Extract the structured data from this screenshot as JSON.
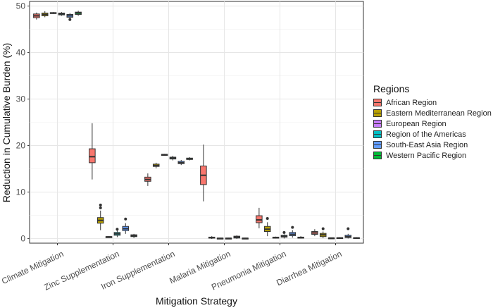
{
  "chart_data": {
    "type": "boxplot",
    "title": "",
    "xlabel": "Mitigation Strategy",
    "ylabel": "Reduction in Cumulative Burden (%)",
    "ylim": [
      -1,
      51
    ],
    "yticks": [
      0,
      10,
      20,
      30,
      40,
      50
    ],
    "ytick_labels": [
      "0",
      "10",
      "20",
      "30",
      "40",
      "50"
    ],
    "grid": true,
    "legend_position": "right",
    "categories": [
      "Climate Mitigation",
      "Zinc Supplementation",
      "Iron Supplementation",
      "Malaria Mitigation",
      "Pneumonia Mitigation",
      "Diarrhea Mitigation"
    ],
    "series": [
      {
        "name": "African Region",
        "color": "#F8766D",
        "boxes": [
          {
            "min": 47.1,
            "q1": 47.5,
            "median": 47.9,
            "q3": 48.3,
            "max": 48.6
          },
          {
            "min": 12.7,
            "q1": 16.3,
            "median": 17.6,
            "q3": 19.3,
            "max": 24.8,
            "outliers": []
          },
          {
            "min": 11.3,
            "q1": 12.3,
            "median": 12.7,
            "q3": 13.2,
            "max": 14.0
          },
          {
            "min": 8.0,
            "q1": 11.6,
            "median": 13.6,
            "q3": 15.6,
            "max": 20.2
          },
          {
            "min": 2.2,
            "q1": 3.4,
            "median": 4.0,
            "q3": 4.9,
            "max": 6.6
          },
          {
            "min": 0.5,
            "q1": 0.9,
            "median": 1.2,
            "q3": 1.5,
            "max": 2.0
          }
        ]
      },
      {
        "name": "Eastern Mediterranean Region",
        "color": "#B79F00",
        "boxes": [
          {
            "min": 47.6,
            "q1": 47.9,
            "median": 48.2,
            "q3": 48.5,
            "max": 48.9
          },
          {
            "min": 1.8,
            "q1": 3.3,
            "median": 3.9,
            "q3": 4.5,
            "max": 6.0,
            "outliers": [
              6.6,
              7.2
            ]
          },
          {
            "min": 15.1,
            "q1": 15.5,
            "median": 15.7,
            "q3": 16.0,
            "max": 16.3
          },
          {
            "min": -0.1,
            "q1": 0.1,
            "median": 0.2,
            "q3": 0.3,
            "max": 0.5
          },
          {
            "min": 0.5,
            "q1": 1.5,
            "median": 2.0,
            "q3": 2.6,
            "max": 3.5,
            "outliers": [
              4.3
            ]
          },
          {
            "min": 0.1,
            "q1": 0.4,
            "median": 0.8,
            "q3": 1.1,
            "max": 1.5,
            "outliers": [
              2.1
            ]
          }
        ]
      },
      {
        "name": "European Region",
        "color": "#C77CFF",
        "boxes": [
          {
            "min": 48.3,
            "q1": 48.4,
            "median": 48.5,
            "q3": 48.6,
            "max": 48.7
          },
          {
            "min": 0.2,
            "q1": 0.3,
            "median": 0.35,
            "q3": 0.4,
            "max": 0.5
          },
          {
            "min": 17.9,
            "q1": 18.0,
            "median": 18.05,
            "q3": 18.1,
            "max": 18.2
          },
          {
            "min": -0.1,
            "q1": 0.0,
            "median": 0.05,
            "q3": 0.1,
            "max": 0.2
          },
          {
            "min": 0.0,
            "q1": 0.1,
            "median": 0.2,
            "q3": 0.3,
            "max": 0.4
          },
          {
            "min": 0.0,
            "q1": 0.05,
            "median": 0.1,
            "q3": 0.15,
            "max": 0.2
          }
        ]
      },
      {
        "name": "Region of the Americas",
        "color": "#00BFC4",
        "boxes": [
          {
            "min": 47.9,
            "q1": 48.1,
            "median": 48.3,
            "q3": 48.5,
            "max": 48.7
          },
          {
            "min": 0.3,
            "q1": 0.7,
            "median": 1.0,
            "q3": 1.3,
            "max": 1.7,
            "outliers": [
              2.0
            ]
          },
          {
            "min": 16.8,
            "q1": 17.1,
            "median": 17.3,
            "q3": 17.5,
            "max": 17.8
          },
          {
            "min": -0.1,
            "q1": 0.0,
            "median": 0.05,
            "q3": 0.1,
            "max": 0.2
          },
          {
            "min": 0.0,
            "q1": 0.3,
            "median": 0.5,
            "q3": 0.7,
            "max": 0.9,
            "outliers": [
              1.3
            ]
          },
          {
            "min": 0.0,
            "q1": 0.05,
            "median": 0.1,
            "q3": 0.2,
            "max": 0.3
          }
        ]
      },
      {
        "name": "South-East Asia Region",
        "color": "#619CFF",
        "boxes": [
          {
            "min": 47.2,
            "q1": 47.6,
            "median": 47.9,
            "q3": 48.2,
            "max": 48.5,
            "outliers": [
              47.1
            ]
          },
          {
            "min": 1.0,
            "q1": 1.7,
            "median": 2.1,
            "q3": 2.6,
            "max": 3.3,
            "outliers": [
              4.2
            ]
          },
          {
            "min": 15.8,
            "q1": 16.1,
            "median": 16.3,
            "q3": 16.6,
            "max": 16.9
          },
          {
            "min": -0.1,
            "q1": 0.1,
            "median": 0.3,
            "q3": 0.5,
            "max": 0.7
          },
          {
            "min": 0.2,
            "q1": 0.6,
            "median": 0.9,
            "q3": 1.3,
            "max": 1.8,
            "outliers": [
              2.4
            ]
          },
          {
            "min": 0.0,
            "q1": 0.2,
            "median": 0.4,
            "q3": 0.7,
            "max": 1.0,
            "outliers": [
              2.1
            ]
          }
        ]
      },
      {
        "name": "Western Pacific Region",
        "color": "#00BA38",
        "boxes": [
          {
            "min": 47.9,
            "q1": 48.2,
            "median": 48.5,
            "q3": 48.7,
            "max": 49.0
          },
          {
            "min": 0.1,
            "q1": 0.4,
            "median": 0.6,
            "q3": 0.8,
            "max": 1.0
          },
          {
            "min": 16.8,
            "q1": 17.0,
            "median": 17.1,
            "q3": 17.3,
            "max": 17.5
          },
          {
            "min": -0.1,
            "q1": 0.0,
            "median": 0.05,
            "q3": 0.1,
            "max": 0.2
          },
          {
            "min": 0.0,
            "q1": 0.1,
            "median": 0.2,
            "q3": 0.3,
            "max": 0.5
          },
          {
            "min": 0.0,
            "q1": 0.05,
            "median": 0.1,
            "q3": 0.2,
            "max": 0.3
          }
        ]
      }
    ]
  },
  "legend": {
    "title": "Regions",
    "items": [
      {
        "label": "African Region",
        "color": "#F8766D"
      },
      {
        "label": "Eastern Mediterranean Region",
        "color": "#B79F00"
      },
      {
        "label": "European Region",
        "color": "#C77CFF"
      },
      {
        "label": "Region of the Americas",
        "color": "#00BFC4"
      },
      {
        "label": "South-East Asia Region",
        "color": "#619CFF"
      },
      {
        "label": "Western Pacific Region",
        "color": "#00BA38"
      }
    ]
  }
}
